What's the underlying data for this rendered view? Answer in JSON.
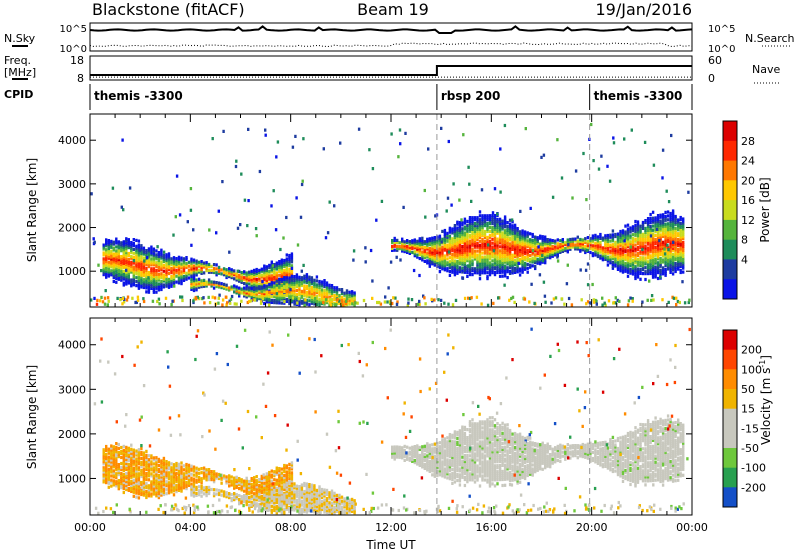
{
  "header": {
    "station": "Blackstone (fitACF)",
    "beam": "Beam 19",
    "date": "19/Jan/2016"
  },
  "nsky_panel": {
    "left_label": "N.Sky",
    "right_label": "N.Search",
    "left_ticks": [
      "10^5",
      "10^0"
    ],
    "right_ticks": [
      "10^5",
      "10^0"
    ]
  },
  "freq_panel": {
    "left_label_top": "Freq.",
    "left_label_bottom": "[MHz]",
    "right_label": "Nave",
    "left_ticks": [
      "18",
      "8"
    ],
    "right_ticks": [
      "60",
      "0"
    ],
    "freq_steps": [
      {
        "t": 0,
        "f": 10.5
      },
      {
        "t": 13.83,
        "f": 10.5
      },
      {
        "t": 13.83,
        "f": 15.0
      },
      {
        "t": 24,
        "f": 15.0
      }
    ],
    "nave_level": 8
  },
  "cpid_panel": {
    "label": "CPID",
    "segments": [
      {
        "label": "themis -3300",
        "start": 0.0,
        "end": 13.83
      },
      {
        "label": "rbsp 200",
        "start": 13.83,
        "end": 19.92
      },
      {
        "label": "themis -3300",
        "start": 19.92,
        "end": 24.0
      }
    ]
  },
  "chart_data": [
    {
      "type": "heatmap",
      "name": "power",
      "ylabel": "Slant Range [km]",
      "ylim": [
        180,
        4600
      ],
      "yticks": [
        1000,
        2000,
        3000,
        4000
      ],
      "xlim": [
        0,
        24
      ],
      "xticks": [
        "00:00",
        "04:00",
        "08:00",
        "12:00",
        "16:00",
        "20:00",
        "00:00"
      ],
      "colorbar_label": "Power [dB]",
      "colorbar_ticks": [
        "28",
        "24",
        "20",
        "16",
        "12",
        "8",
        "4"
      ],
      "colors": [
        "#0a14e6",
        "#1e3ca0",
        "#1e8c5a",
        "#55b43c",
        "#c8dc1e",
        "#ffc800",
        "#ff7800",
        "#ff2800",
        "#dc0000"
      ],
      "bands": [
        {
          "t0": 0.5,
          "t1": 8.0,
          "r_start": 1250,
          "r_end": 850,
          "dr": 380,
          "peak_dB": 26
        },
        {
          "t0": 4.0,
          "t1": 10.5,
          "r_start": 700,
          "r_end": 430,
          "dr": 260,
          "peak_dB": 22
        },
        {
          "t0": 12.0,
          "t1": 23.7,
          "r_start": 1550,
          "r_end": 1600,
          "dr": 520,
          "peak_dB": 27
        }
      ]
    },
    {
      "type": "heatmap",
      "name": "velocity",
      "ylabel": "Slant Range [km]",
      "ylim": [
        180,
        4600
      ],
      "yticks": [
        1000,
        2000,
        3000,
        4000
      ],
      "xlim": [
        0,
        24
      ],
      "xticks": [
        "00:00",
        "04:00",
        "08:00",
        "12:00",
        "16:00",
        "20:00",
        "00:00"
      ],
      "xlabel": "Time UT",
      "colorbar_label": "Velocity [m s",
      "colorbar_label_sup": "-1",
      "colorbar_label_end": "]",
      "colorbar_ticks": [
        "200",
        "100",
        "50",
        "15",
        "-15",
        "-50",
        "-100",
        "-200"
      ],
      "colors": [
        "#dc0000",
        "#ff4600",
        "#ff8c00",
        "#f0b400",
        "#c8c8be",
        "#c8c8be",
        "#6ec83c",
        "#28a050",
        "#1450c8"
      ]
    }
  ]
}
